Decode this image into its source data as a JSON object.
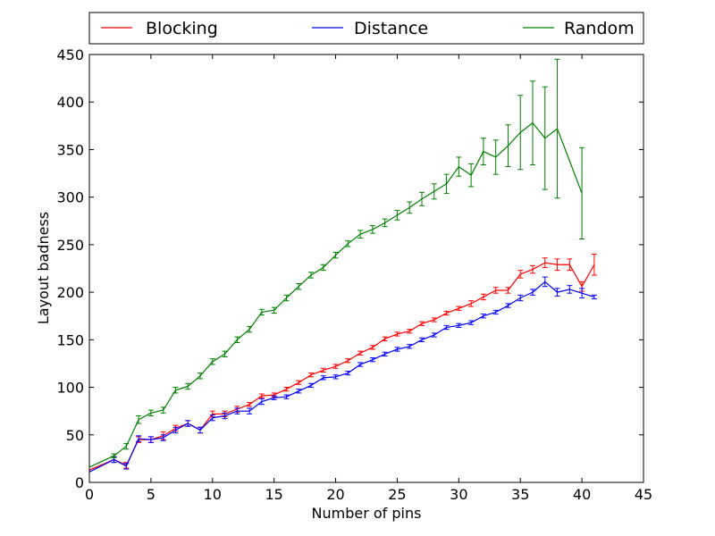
{
  "chart_data": {
    "type": "line",
    "xlabel": "Number of pins",
    "ylabel": "Layout badness",
    "xlim": [
      0,
      45
    ],
    "ylim": [
      0,
      450
    ],
    "xticks": [
      0,
      5,
      10,
      15,
      20,
      25,
      30,
      35,
      40,
      45
    ],
    "yticks": [
      0,
      50,
      100,
      150,
      200,
      250,
      300,
      350,
      400,
      450
    ],
    "grid": false,
    "legend_position": "top, above plot",
    "series": [
      {
        "name": "Blocking",
        "color": "#ff0000",
        "points": [
          [
            0,
            13,
            0
          ],
          [
            2,
            24,
            3
          ],
          [
            3,
            18,
            3
          ],
          [
            4,
            45,
            3
          ],
          [
            5,
            45,
            3
          ],
          [
            6,
            49,
            4
          ],
          [
            7,
            57,
            3
          ],
          [
            8,
            62,
            3
          ],
          [
            9,
            55,
            3
          ],
          [
            10,
            72,
            3
          ],
          [
            11,
            72,
            3
          ],
          [
            12,
            77,
            3
          ],
          [
            13,
            82,
            2
          ],
          [
            14,
            91,
            2
          ],
          [
            15,
            92,
            2
          ],
          [
            16,
            98,
            2
          ],
          [
            17,
            105,
            2
          ],
          [
            18,
            113,
            2
          ],
          [
            19,
            118,
            2
          ],
          [
            20,
            122,
            2
          ],
          [
            21,
            128,
            2
          ],
          [
            22,
            136,
            2
          ],
          [
            23,
            142,
            2
          ],
          [
            24,
            151,
            2
          ],
          [
            25,
            156,
            2
          ],
          [
            26,
            159,
            2
          ],
          [
            27,
            167,
            2
          ],
          [
            28,
            171,
            2
          ],
          [
            29,
            178,
            2
          ],
          [
            30,
            183,
            2
          ],
          [
            31,
            188,
            3
          ],
          [
            32,
            195,
            3
          ],
          [
            33,
            202,
            3
          ],
          [
            34,
            202,
            3
          ],
          [
            35,
            219,
            4
          ],
          [
            36,
            224,
            4
          ],
          [
            37,
            231,
            5
          ],
          [
            38,
            229,
            6
          ],
          [
            39,
            229,
            6
          ],
          [
            40,
            206,
            5
          ],
          [
            41,
            229,
            11
          ]
        ]
      },
      {
        "name": "Distance",
        "color": "#0000ff",
        "points": [
          [
            0,
            11,
            0
          ],
          [
            2,
            24,
            3
          ],
          [
            3,
            17,
            3
          ],
          [
            4,
            46,
            3
          ],
          [
            5,
            45,
            3
          ],
          [
            6,
            47,
            3
          ],
          [
            7,
            55,
            3
          ],
          [
            8,
            62,
            3
          ],
          [
            9,
            55,
            3
          ],
          [
            10,
            68,
            3
          ],
          [
            11,
            70,
            3
          ],
          [
            12,
            75,
            3
          ],
          [
            13,
            75,
            3
          ],
          [
            14,
            85,
            3
          ],
          [
            15,
            89,
            2
          ],
          [
            16,
            90,
            2
          ],
          [
            17,
            96,
            2
          ],
          [
            18,
            102,
            2
          ],
          [
            19,
            110,
            2
          ],
          [
            20,
            111,
            2
          ],
          [
            21,
            115,
            2
          ],
          [
            22,
            124,
            2
          ],
          [
            23,
            129,
            2
          ],
          [
            24,
            135,
            2
          ],
          [
            25,
            140,
            2
          ],
          [
            26,
            143,
            2
          ],
          [
            27,
            150,
            2
          ],
          [
            28,
            155,
            2
          ],
          [
            29,
            163,
            2
          ],
          [
            30,
            165,
            2
          ],
          [
            31,
            168,
            2
          ],
          [
            32,
            175,
            2
          ],
          [
            33,
            179,
            2
          ],
          [
            34,
            186,
            2
          ],
          [
            35,
            194,
            3
          ],
          [
            36,
            200,
            3
          ],
          [
            37,
            211,
            5
          ],
          [
            38,
            200,
            4
          ],
          [
            39,
            203,
            4
          ],
          [
            40,
            199,
            5
          ],
          [
            41,
            195,
            2
          ]
        ]
      },
      {
        "name": "Random",
        "color": "#008000",
        "points": [
          [
            0,
            16,
            0
          ],
          [
            2,
            28,
            2
          ],
          [
            3,
            38,
            3
          ],
          [
            4,
            66,
            4
          ],
          [
            5,
            73,
            3
          ],
          [
            6,
            76,
            3
          ],
          [
            7,
            97,
            3
          ],
          [
            8,
            101,
            3
          ],
          [
            9,
            112,
            3
          ],
          [
            10,
            127,
            3
          ],
          [
            11,
            135,
            3
          ],
          [
            12,
            150,
            3
          ],
          [
            13,
            161,
            3
          ],
          [
            14,
            179,
            3
          ],
          [
            15,
            181,
            3
          ],
          [
            16,
            194,
            3
          ],
          [
            17,
            206,
            3
          ],
          [
            18,
            218,
            3
          ],
          [
            19,
            226,
            3
          ],
          [
            20,
            239,
            3
          ],
          [
            21,
            251,
            3
          ],
          [
            22,
            261,
            4
          ],
          [
            23,
            266,
            4
          ],
          [
            24,
            273,
            4
          ],
          [
            25,
            281,
            5
          ],
          [
            26,
            289,
            6
          ],
          [
            27,
            298,
            7
          ],
          [
            28,
            306,
            8
          ],
          [
            29,
            314,
            10
          ],
          [
            30,
            332,
            10
          ],
          [
            31,
            323,
            12
          ],
          [
            32,
            348,
            14
          ],
          [
            33,
            342,
            18
          ],
          [
            34,
            354,
            22
          ],
          [
            35,
            368,
            39
          ],
          [
            36,
            378,
            44
          ],
          [
            37,
            362,
            54
          ],
          [
            38,
            372,
            73
          ],
          [
            40,
            304,
            48
          ]
        ]
      }
    ]
  }
}
